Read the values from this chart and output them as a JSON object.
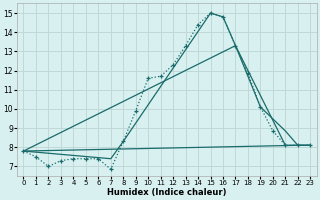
{
  "xlabel": "Humidex (Indice chaleur)",
  "bg_color": "#d8f0f0",
  "grid_color": "#c0d8d8",
  "line_color": "#1a6b6b",
  "xlim": [
    -0.5,
    23.5
  ],
  "ylim": [
    6.5,
    15.5
  ],
  "xticks": [
    0,
    1,
    2,
    3,
    4,
    5,
    6,
    7,
    8,
    9,
    10,
    11,
    12,
    13,
    14,
    15,
    16,
    17,
    18,
    19,
    20,
    21,
    22,
    23
  ],
  "yticks": [
    7,
    8,
    9,
    10,
    11,
    12,
    13,
    14,
    15
  ],
  "series1_x": [
    0,
    1,
    2,
    3,
    4,
    5,
    6,
    7,
    8,
    9,
    10,
    11,
    12,
    13,
    14,
    15,
    16,
    17,
    18,
    19,
    20,
    21,
    22,
    23
  ],
  "series1_y": [
    7.8,
    7.5,
    7.0,
    7.3,
    7.4,
    7.4,
    7.4,
    6.85,
    8.3,
    9.9,
    11.6,
    11.7,
    12.3,
    13.3,
    14.4,
    15.0,
    14.8,
    13.3,
    11.85,
    10.1,
    8.85,
    8.1,
    8.1,
    8.1
  ],
  "series2_x": [
    0,
    7,
    8,
    15,
    16,
    17,
    21,
    22,
    23
  ],
  "series2_y": [
    7.8,
    7.4,
    8.3,
    15.0,
    14.8,
    13.3,
    8.1,
    8.1,
    8.1
  ],
  "series3_x": [
    0,
    17,
    19,
    21,
    22,
    23
  ],
  "series3_y": [
    7.8,
    13.3,
    10.1,
    8.85,
    8.1,
    8.1
  ],
  "series4_x": [
    0,
    22,
    23
  ],
  "series4_y": [
    7.8,
    8.1,
    8.1
  ]
}
